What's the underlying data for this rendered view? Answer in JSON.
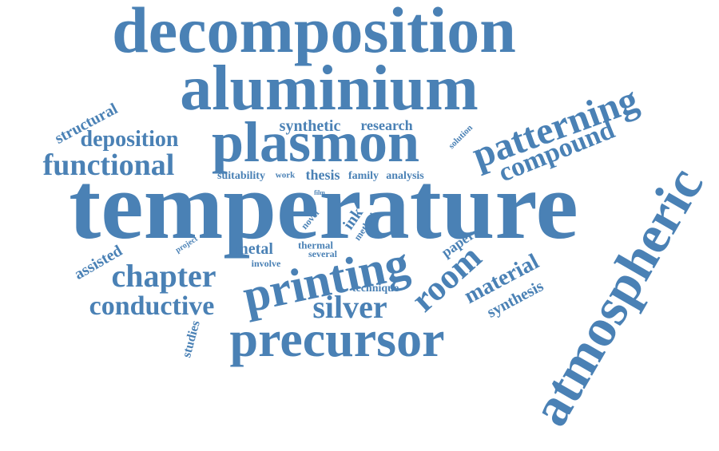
{
  "cloud_color": "#4a81b5",
  "words": {
    "temperature": "temperature",
    "decomposition": "decomposition",
    "aluminium": "aluminium",
    "plasmon": "plasmon",
    "atmospheric": "atmospheric",
    "precursor": "precursor",
    "printing": "printing",
    "patterning": "patterning",
    "functional": "functional",
    "compound": "compound",
    "chapter": "chapter",
    "conductive": "conductive",
    "silver": "silver",
    "room": "room",
    "deposition": "deposition",
    "material": "material",
    "structural": "structural",
    "synthetic": "synthetic",
    "research": "research",
    "assisted": "assisted",
    "metal": "metal",
    "synthesis": "synthesis",
    "paper": "paper",
    "thesis": "thesis",
    "suitability": "suitability",
    "family": "family",
    "analysis": "analysis",
    "work": "work",
    "ink": "ink",
    "studies": "studies",
    "technique": "technique",
    "solution": "solution",
    "novel": "novel",
    "method": "method",
    "thermal": "thermal",
    "several": "several",
    "involve": "involve",
    "project": "project",
    "film": "film"
  }
}
